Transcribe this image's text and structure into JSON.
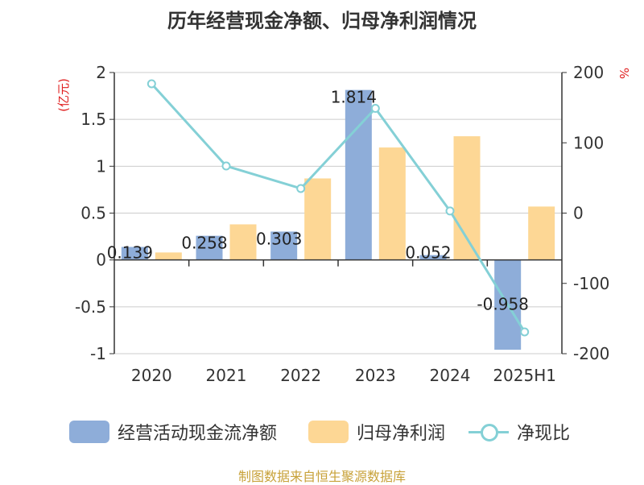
{
  "title": "历年经营现金净额、归母净利润情况",
  "source": "制图数据来自恒生聚源数据库",
  "colors": {
    "cash_flow": "#8eadd9",
    "net_profit": "#fdd795",
    "ratio": "#84d0d6",
    "unit_label": "#e02020",
    "source_text": "#c8a23a"
  },
  "chart_data": {
    "type": "bar",
    "categories": [
      "2020",
      "2021",
      "2022",
      "2023",
      "2024",
      "2025H1"
    ],
    "left_axis": {
      "unit": "(亿元)",
      "ylim": [
        -1,
        2
      ],
      "ticks": [
        "2",
        "1.5",
        "1",
        "0.5",
        "0",
        "-0.5",
        "-1"
      ]
    },
    "right_axis": {
      "unit": "%",
      "ylim": [
        -200,
        200
      ],
      "ticks": [
        "200",
        "100",
        "0",
        "-100",
        "-200"
      ]
    },
    "grid": true,
    "legend_position": "bottom",
    "series": [
      {
        "name": "经营活动现金流净额",
        "type": "bar",
        "axis": "left",
        "values": [
          0.139,
          0.258,
          0.303,
          1.814,
          0.052,
          -0.958
        ],
        "labels": [
          "0.139",
          "0.258",
          "0.303",
          "1.814",
          "0.052",
          "-0.958"
        ]
      },
      {
        "name": "归母净利润",
        "type": "bar",
        "axis": "left",
        "values": [
          0.08,
          0.38,
          0.87,
          1.2,
          1.32,
          0.57
        ]
      },
      {
        "name": "净现比",
        "type": "line",
        "axis": "right",
        "values": [
          184,
          67,
          35,
          149,
          3,
          -169
        ]
      }
    ]
  }
}
